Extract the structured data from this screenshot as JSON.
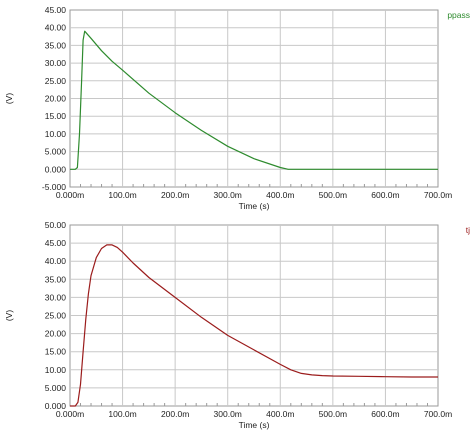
{
  "chart_data": [
    {
      "type": "line",
      "xlabel": "Time (s)",
      "ylabel": "(V)",
      "xlim": [
        0,
        700
      ],
      "ylim": [
        -5,
        45
      ],
      "x_tick_values": [
        0,
        100,
        200,
        300,
        400,
        500,
        600,
        700
      ],
      "x_tick_labels": [
        "0.000m",
        "100.0m",
        "200.0m",
        "300.0m",
        "400.0m",
        "500.0m",
        "600.0m",
        "700.0m"
      ],
      "y_tick_values": [
        -5,
        0,
        5,
        10,
        15,
        20,
        25,
        30,
        35,
        40,
        45
      ],
      "y_tick_labels": [
        "-5.000",
        "0.000",
        "5.000",
        "10.00",
        "15.00",
        "20.00",
        "25.00",
        "30.00",
        "35.00",
        "40.00",
        "45.00"
      ],
      "grid": true,
      "legend": "top-right",
      "series": [
        {
          "name": "ppass",
          "color": "#2e8b2e",
          "x": [
            0,
            10,
            14,
            18,
            22,
            25,
            28,
            40,
            60,
            80,
            100,
            150,
            200,
            250,
            300,
            350,
            400,
            415,
            420,
            450,
            500,
            600,
            700
          ],
          "y": [
            0,
            0,
            0.5,
            10,
            25,
            36.5,
            39,
            37,
            33.5,
            30.5,
            28,
            21.5,
            16,
            11,
            6.5,
            3,
            0.5,
            0,
            0,
            0,
            0,
            0,
            0
          ]
        }
      ]
    },
    {
      "type": "line",
      "xlabel": "Time (s)",
      "ylabel": "(V)",
      "xlim": [
        0,
        700
      ],
      "ylim": [
        0,
        50
      ],
      "x_tick_values": [
        0,
        100,
        200,
        300,
        400,
        500,
        600,
        700
      ],
      "x_tick_labels": [
        "0.000m",
        "100.0m",
        "200.0m",
        "300.0m",
        "400.0m",
        "500.0m",
        "600.0m",
        "700.0m"
      ],
      "y_tick_values": [
        0,
        5,
        10,
        15,
        20,
        25,
        30,
        35,
        40,
        45,
        50
      ],
      "y_tick_labels": [
        "0.000",
        "5.000",
        "10.00",
        "15.00",
        "20.00",
        "25.00",
        "30.00",
        "35.00",
        "40.00",
        "45.00",
        "50.00"
      ],
      "grid": true,
      "legend": "top-right",
      "series": [
        {
          "name": "tj",
          "color": "#9b1c1c",
          "x": [
            0,
            10,
            15,
            20,
            25,
            30,
            35,
            40,
            50,
            60,
            70,
            80,
            90,
            100,
            120,
            150,
            200,
            250,
            300,
            350,
            400,
            420,
            440,
            460,
            480,
            500,
            550,
            600,
            650,
            700
          ],
          "y": [
            0,
            0,
            1,
            6,
            15,
            24,
            31,
            36,
            41,
            43.5,
            44.5,
            44.5,
            43.8,
            42.5,
            39.5,
            35.5,
            30,
            24.5,
            19.5,
            15.5,
            11.5,
            10,
            9,
            8.6,
            8.4,
            8.3,
            8.2,
            8.1,
            8,
            8
          ]
        }
      ]
    }
  ]
}
